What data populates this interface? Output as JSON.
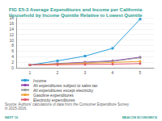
{
  "chart_data": {
    "type": "line",
    "title": "FIG E5-3 Average Expenditures and Income per California Household by Income Quintile Relative to Lowest Quintile",
    "categories": [
      "1",
      "2",
      "3",
      "4",
      "5"
    ],
    "series": [
      {
        "name": "Income",
        "color": "#2e9fd9",
        "marker": "square",
        "values": [
          1,
          2.5,
          4.2,
          7,
          17.5
        ]
      },
      {
        "name": "All expenditures subject to sales tax",
        "color": "#8e44ad",
        "marker": "circle",
        "values": [
          1,
          1.5,
          2,
          2.5,
          3.8
        ]
      },
      {
        "name": "All expenditures except electricity",
        "color": "#9a9a9a",
        "marker": "circle",
        "values": [
          1,
          1.4,
          1.8,
          2.3,
          3.6
        ]
      },
      {
        "name": "Gasoline expenditures",
        "color": "#f0a030",
        "marker": "circle",
        "values": [
          1,
          1.3,
          1.6,
          1.9,
          2.3
        ]
      },
      {
        "name": "Electricity expenditures",
        "color": "#e05a6a",
        "marker": "circle",
        "values": [
          1,
          1.1,
          1.2,
          1.3,
          1.5
        ]
      }
    ],
    "ylim": [
      0,
      18
    ],
    "yticks": [
      0,
      2,
      4,
      6,
      8,
      10,
      12,
      14,
      16,
      18
    ],
    "grid": true,
    "legend": "bottom-left",
    "annotations": [
      "Source: Authors' calculations of data from the Consumer Expenditure Survey in 2015-2016.",
      "NEXT 10",
      "BEACON ECONOMICS"
    ]
  }
}
